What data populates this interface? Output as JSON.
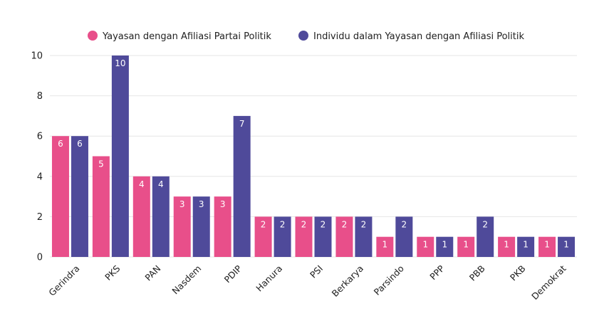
{
  "chart_data": {
    "type": "bar",
    "categories": [
      "Gerindra",
      "PKS",
      "PAN",
      "Nasdem",
      "PDIP",
      "Hanura",
      "PSI",
      "Berkarya",
      "Parsindo",
      "PPP",
      "PBB",
      "PKB",
      "Demokrat"
    ],
    "series": [
      {
        "name": "Yayasan dengan Afiliasi Partai Politik",
        "color": "#e84f8a",
        "values": [
          6,
          5,
          4,
          3,
          3,
          2,
          2,
          2,
          1,
          1,
          1,
          1,
          1
        ]
      },
      {
        "name": "Individu dalam Yayasan dengan Afiliasi Politik",
        "color": "#4f4a9a",
        "values": [
          6,
          10,
          4,
          3,
          7,
          2,
          2,
          2,
          2,
          1,
          2,
          1,
          1
        ]
      }
    ],
    "ylim": [
      0,
      10
    ],
    "yticks": [
      0,
      2,
      4,
      6,
      8,
      10
    ],
    "grid": true,
    "legend_position": "top",
    "title": "",
    "xlabel": "",
    "ylabel": ""
  }
}
